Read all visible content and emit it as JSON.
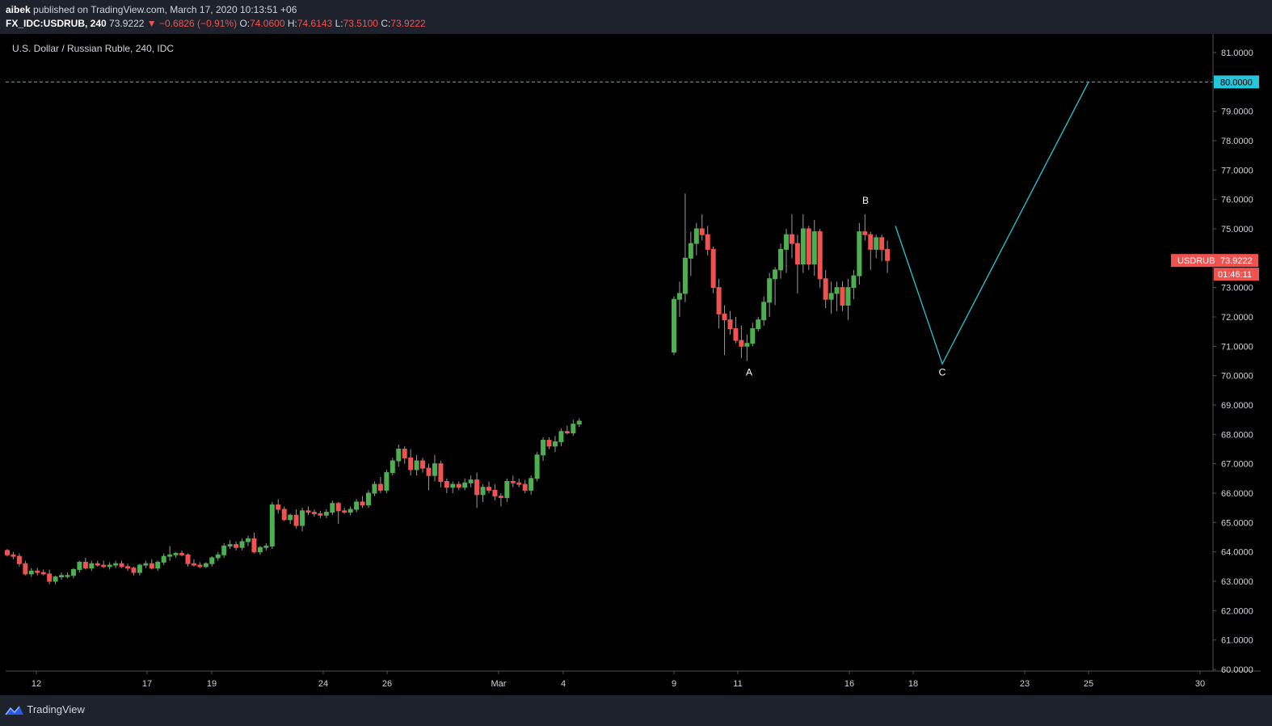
{
  "header": {
    "publisher": "aibek",
    "published_text": "published on TradingView.com, March 17, 2020 10:13:51 +06",
    "symbol": "FX_IDC:USDRUB, 240",
    "last_price": "73.9222",
    "arrow": "▼",
    "change": "−0.6826 (−0.91%)",
    "o_label": "O:",
    "o_value": "74.0600",
    "h_label": "H:",
    "h_value": "74.6143",
    "l_label": "L:",
    "l_value": "73.5100",
    "c_label": "C:",
    "c_value": "73.9222"
  },
  "chart_title": "U.S. Dollar / Russian Ruble, 240, IDC",
  "footer": {
    "brand": "TradingView",
    "brand_icon": "tradingview-logo-icon"
  },
  "colors": {
    "up": "#4caf50",
    "down": "#ef5350",
    "drawing": "#26c6da",
    "background": "#000000",
    "panel": "#1e222d"
  },
  "chart_data": {
    "type": "candlestick",
    "title": "U.S. Dollar / Russian Ruble, 240, IDC",
    "ylim": [
      60,
      81.5
    ],
    "y_ticks": [
      "81.0000",
      "80.0000",
      "79.0000",
      "78.0000",
      "77.0000",
      "76.0000",
      "75.0000",
      "74.0000",
      "73.0000",
      "72.0000",
      "71.0000",
      "70.0000",
      "69.0000",
      "68.0000",
      "67.0000",
      "66.0000",
      "65.0000",
      "64.0000",
      "63.0000",
      "62.0000",
      "61.0000",
      "60.0000"
    ],
    "x_ticks": [
      "12",
      "17",
      "19",
      "24",
      "26",
      "Mar",
      "4",
      "9",
      "11",
      "16",
      "18",
      "23",
      "25",
      "30"
    ],
    "horizontal_line": {
      "value": 80.0,
      "label": "80.0000",
      "style": "dashed"
    },
    "price_label": {
      "symbol": "USDRUB",
      "value": "73.9222",
      "countdown": "01:46:11"
    },
    "annotations": [
      "A",
      "B",
      "C"
    ],
    "projection": [
      {
        "date": "Mar 17",
        "price": 75.1
      },
      {
        "date": "Mar 19",
        "price": 70.4
      },
      {
        "date": "Mar 25",
        "price": 80.0
      }
    ],
    "candles": [
      [
        64.05,
        64.1,
        63.85,
        63.9
      ],
      [
        63.9,
        64.0,
        63.75,
        63.85
      ],
      [
        63.85,
        63.95,
        63.5,
        63.6
      ],
      [
        63.6,
        63.7,
        63.2,
        63.25
      ],
      [
        63.25,
        63.45,
        63.15,
        63.35
      ],
      [
        63.35,
        63.45,
        63.2,
        63.3
      ],
      [
        63.3,
        63.4,
        63.2,
        63.25
      ],
      [
        63.25,
        63.4,
        62.9,
        63.0
      ],
      [
        63.0,
        63.2,
        62.9,
        63.15
      ],
      [
        63.15,
        63.3,
        63.05,
        63.2
      ],
      [
        63.2,
        63.3,
        63.1,
        63.2
      ],
      [
        63.2,
        63.45,
        63.1,
        63.4
      ],
      [
        63.4,
        63.7,
        63.3,
        63.65
      ],
      [
        63.65,
        63.8,
        63.4,
        63.45
      ],
      [
        63.45,
        63.7,
        63.35,
        63.6
      ],
      [
        63.6,
        63.7,
        63.5,
        63.55
      ],
      [
        63.55,
        63.7,
        63.45,
        63.5
      ],
      [
        63.5,
        63.65,
        63.4,
        63.55
      ],
      [
        63.55,
        63.7,
        63.45,
        63.6
      ],
      [
        63.6,
        63.7,
        63.45,
        63.5
      ],
      [
        63.5,
        63.6,
        63.35,
        63.45
      ],
      [
        63.45,
        63.5,
        63.2,
        63.3
      ],
      [
        63.3,
        63.6,
        63.2,
        63.55
      ],
      [
        63.55,
        63.7,
        63.45,
        63.6
      ],
      [
        63.6,
        63.75,
        63.4,
        63.45
      ],
      [
        63.45,
        63.7,
        63.35,
        63.65
      ],
      [
        63.65,
        63.95,
        63.55,
        63.85
      ],
      [
        63.85,
        64.2,
        63.7,
        63.9
      ],
      [
        63.9,
        64.0,
        63.8,
        63.95
      ],
      [
        63.95,
        64.05,
        63.85,
        63.9
      ],
      [
        63.9,
        63.95,
        63.5,
        63.6
      ],
      [
        63.6,
        63.75,
        63.5,
        63.55
      ],
      [
        63.55,
        63.65,
        63.45,
        63.5
      ],
      [
        63.5,
        63.65,
        63.45,
        63.6
      ],
      [
        63.6,
        63.85,
        63.5,
        63.8
      ],
      [
        63.8,
        64.0,
        63.7,
        63.9
      ],
      [
        63.9,
        64.3,
        63.8,
        64.2
      ],
      [
        64.2,
        64.4,
        64.1,
        64.25
      ],
      [
        64.25,
        64.35,
        64.05,
        64.15
      ],
      [
        64.15,
        64.45,
        64.05,
        64.35
      ],
      [
        64.35,
        64.55,
        64.2,
        64.45
      ],
      [
        64.45,
        64.65,
        63.95,
        64.0
      ],
      [
        64.0,
        64.2,
        63.9,
        64.15
      ],
      [
        64.15,
        64.3,
        64.05,
        64.2
      ],
      [
        64.2,
        65.7,
        64.1,
        65.6
      ],
      [
        65.6,
        65.8,
        65.3,
        65.45
      ],
      [
        65.45,
        65.55,
        65.05,
        65.1
      ],
      [
        65.1,
        65.3,
        64.95,
        65.25
      ],
      [
        65.25,
        65.45,
        64.8,
        64.9
      ],
      [
        64.9,
        65.5,
        64.7,
        65.4
      ],
      [
        65.4,
        65.55,
        65.25,
        65.35
      ],
      [
        65.35,
        65.45,
        65.2,
        65.3
      ],
      [
        65.3,
        65.4,
        65.15,
        65.25
      ],
      [
        65.25,
        65.45,
        65.15,
        65.35
      ],
      [
        65.35,
        65.75,
        65.25,
        65.65
      ],
      [
        65.65,
        65.7,
        64.95,
        65.4
      ],
      [
        65.4,
        65.5,
        65.3,
        65.35
      ],
      [
        65.35,
        65.55,
        65.25,
        65.45
      ],
      [
        65.45,
        65.8,
        65.35,
        65.7
      ],
      [
        65.7,
        65.9,
        65.5,
        65.6
      ],
      [
        65.6,
        66.1,
        65.5,
        66.0
      ],
      [
        66.0,
        66.4,
        65.9,
        66.3
      ],
      [
        66.3,
        66.55,
        66.0,
        66.1
      ],
      [
        66.1,
        66.8,
        66.0,
        66.7
      ],
      [
        66.7,
        67.2,
        66.6,
        67.1
      ],
      [
        67.1,
        67.65,
        66.9,
        67.5
      ],
      [
        67.5,
        67.6,
        67.0,
        67.2
      ],
      [
        67.2,
        67.5,
        66.6,
        66.8
      ],
      [
        66.8,
        67.3,
        66.6,
        67.1
      ],
      [
        67.1,
        67.2,
        66.7,
        66.85
      ],
      [
        66.85,
        67.0,
        66.1,
        66.6
      ],
      [
        66.6,
        67.3,
        66.4,
        67.0
      ],
      [
        67.0,
        67.1,
        66.2,
        66.4
      ],
      [
        66.4,
        66.5,
        66.0,
        66.2
      ],
      [
        66.2,
        66.4,
        66.0,
        66.3
      ],
      [
        66.3,
        66.4,
        66.1,
        66.2
      ],
      [
        66.2,
        66.5,
        66.1,
        66.35
      ],
      [
        66.35,
        66.6,
        66.2,
        66.45
      ],
      [
        66.45,
        66.7,
        65.5,
        65.95
      ],
      [
        65.95,
        66.3,
        65.7,
        66.2
      ],
      [
        66.2,
        66.4,
        66.0,
        66.1
      ],
      [
        66.1,
        66.3,
        65.75,
        65.9
      ],
      [
        65.9,
        66.0,
        65.55,
        65.85
      ],
      [
        65.85,
        66.5,
        65.7,
        66.4
      ],
      [
        66.4,
        66.6,
        66.2,
        66.35
      ],
      [
        66.35,
        66.5,
        66.2,
        66.3
      ],
      [
        66.3,
        66.45,
        66.0,
        66.1
      ],
      [
        66.1,
        66.6,
        65.95,
        66.5
      ],
      [
        66.5,
        67.4,
        66.4,
        67.3
      ],
      [
        67.3,
        67.9,
        67.1,
        67.8
      ],
      [
        67.8,
        67.9,
        67.5,
        67.6
      ],
      [
        67.6,
        67.95,
        67.4,
        67.75
      ],
      [
        67.75,
        68.2,
        67.6,
        68.1
      ],
      [
        68.1,
        68.3,
        68.0,
        68.05
      ],
      [
        68.05,
        68.5,
        67.95,
        68.35
      ],
      [
        68.35,
        68.55,
        68.25,
        68.45
      ]
    ],
    "candles_2": [
      [
        70.8,
        72.7,
        70.7,
        72.6
      ],
      [
        72.6,
        73.2,
        72.0,
        72.8
      ],
      [
        72.8,
        76.2,
        72.5,
        74.0
      ],
      [
        74.0,
        74.9,
        73.4,
        74.5
      ],
      [
        74.5,
        75.2,
        74.1,
        75.0
      ],
      [
        75.0,
        75.5,
        74.6,
        74.8
      ],
      [
        74.8,
        75.1,
        74.1,
        74.3
      ],
      [
        74.3,
        74.4,
        72.8,
        73.0
      ],
      [
        73.0,
        73.3,
        71.6,
        72.1
      ],
      [
        72.1,
        72.4,
        70.7,
        71.9
      ],
      [
        71.9,
        72.2,
        71.4,
        71.6
      ],
      [
        71.6,
        72.0,
        71.1,
        71.2
      ],
      [
        71.2,
        71.7,
        70.6,
        71.0
      ],
      [
        71.0,
        71.4,
        70.5,
        71.1
      ],
      [
        71.1,
        71.8,
        71.0,
        71.6
      ],
      [
        71.6,
        72.0,
        71.5,
        71.9
      ],
      [
        71.9,
        72.7,
        71.7,
        72.5
      ],
      [
        72.5,
        73.5,
        72.0,
        73.3
      ],
      [
        73.3,
        73.7,
        72.4,
        73.6
      ],
      [
        73.6,
        74.5,
        73.3,
        74.3
      ],
      [
        74.3,
        75.0,
        73.5,
        74.8
      ],
      [
        74.8,
        75.5,
        74.0,
        74.5
      ],
      [
        74.5,
        74.8,
        72.8,
        73.8
      ],
      [
        73.8,
        75.5,
        73.5,
        75.0
      ],
      [
        75.0,
        75.1,
        73.6,
        73.8
      ],
      [
        73.8,
        75.3,
        73.4,
        74.9
      ],
      [
        74.9,
        75.0,
        73.0,
        73.3
      ],
      [
        73.3,
        73.6,
        72.3,
        72.6
      ],
      [
        72.6,
        73.2,
        72.1,
        72.8
      ],
      [
        72.8,
        73.2,
        72.2,
        73.0
      ],
      [
        73.0,
        73.2,
        72.2,
        72.4
      ],
      [
        72.4,
        73.3,
        71.9,
        73.0
      ],
      [
        73.0,
        73.6,
        72.6,
        73.4
      ],
      [
        73.4,
        75.2,
        73.1,
        74.9
      ],
      [
        74.9,
        75.5,
        74.6,
        74.8
      ],
      [
        74.8,
        74.9,
        73.6,
        74.3
      ],
      [
        74.3,
        74.8,
        74.0,
        74.7
      ],
      [
        74.7,
        74.8,
        73.9,
        74.3
      ],
      [
        74.3,
        74.6,
        73.5,
        73.92
      ]
    ]
  }
}
